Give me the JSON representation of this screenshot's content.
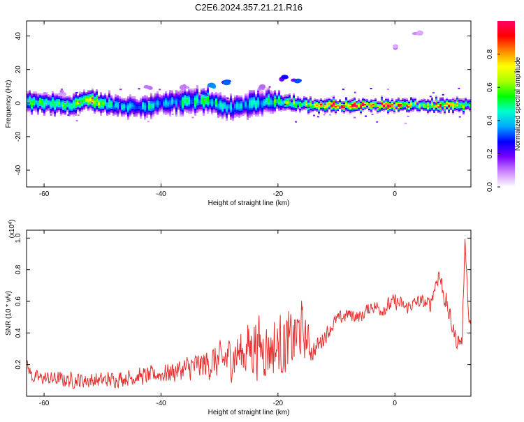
{
  "title": "C2E6.2024.357.21.21.R16",
  "chart_data": [
    {
      "type": "heatmap",
      "title": "C2E6.2024.357.21.21.R16",
      "xlabel": "Height of straight line (km)",
      "ylabel": "Frequency (Hz)",
      "xlim": [
        -63,
        13
      ],
      "ylim": [
        -50,
        49
      ],
      "x_ticks": [
        "-60",
        "-40",
        "-20",
        "0"
      ],
      "y_ticks": [
        "-40",
        "-20",
        "0",
        "20",
        "40"
      ],
      "colorbar": {
        "label": "Normalized spectral amplitude",
        "range": [
          0,
          1
        ],
        "ticks": [
          "0.0",
          "0.2",
          "0.4",
          "0.6",
          "0.8"
        ],
        "colors": [
          "#ffffff",
          "#cc88ff",
          "#7a00ff",
          "#0000ff",
          "#00aaff",
          "#00ffcc",
          "#00ff00",
          "#aaff00",
          "#ffff00",
          "#ff8800",
          "#ff0000",
          "#ff0066"
        ]
      },
      "ridge": [
        {
          "x": -63,
          "y": 1,
          "width": 5,
          "amp": 0.5
        },
        {
          "x": -56,
          "y": -1,
          "width": 5,
          "amp": 0.6
        },
        {
          "x": -52,
          "y": 2,
          "width": 5,
          "amp": 0.7
        },
        {
          "x": -48,
          "y": -1,
          "width": 5,
          "amp": 0.4
        },
        {
          "x": -44,
          "y": -2,
          "width": 5,
          "amp": 0.45
        },
        {
          "x": -40,
          "y": 0,
          "width": 6,
          "amp": 0.4
        },
        {
          "x": -36,
          "y": 1,
          "width": 6,
          "amp": 0.45
        },
        {
          "x": -32,
          "y": 2,
          "width": 6,
          "amp": 0.5
        },
        {
          "x": -28,
          "y": -3,
          "width": 6,
          "amp": 0.4
        },
        {
          "x": -24,
          "y": 0,
          "width": 6,
          "amp": 0.45
        },
        {
          "x": -20,
          "y": 2,
          "width": 5,
          "amp": 0.55
        },
        {
          "x": -17,
          "y": 0,
          "width": 4,
          "amp": 0.6
        },
        {
          "x": -14,
          "y": -1,
          "width": 3,
          "amp": 0.8
        },
        {
          "x": -8,
          "y": -1,
          "width": 3,
          "amp": 0.95
        },
        {
          "x": 0,
          "y": -1,
          "width": 3,
          "amp": 0.95
        },
        {
          "x": 4,
          "y": -1,
          "width": 3,
          "amp": 0.6
        },
        {
          "x": 8,
          "y": -1,
          "width": 3,
          "amp": 0.85
        },
        {
          "x": 13,
          "y": -1,
          "width": 3,
          "amp": 0.6
        }
      ],
      "scattered_blobs": [
        {
          "x": -31,
          "y": 11,
          "amp": 0.35
        },
        {
          "x": -29,
          "y": 12,
          "amp": 0.3
        },
        {
          "x": -19,
          "y": 15,
          "amp": 0.25
        },
        {
          "x": -17,
          "y": 14,
          "amp": 0.3
        },
        {
          "x": -36,
          "y": 10,
          "amp": 0.15
        },
        {
          "x": -42,
          "y": 9,
          "amp": 0.12
        },
        {
          "x": 0,
          "y": 34,
          "amp": 0.1
        },
        {
          "x": 4,
          "y": 41,
          "amp": 0.1
        },
        {
          "x": -23,
          "y": 9,
          "amp": 0.12
        },
        {
          "x": -57,
          "y": 6,
          "amp": 0.12
        }
      ]
    },
    {
      "type": "line",
      "xlabel": "Height of straight line (km)",
      "ylabel": "SNR (10 * v/v)",
      "y_multiplier": "(x10^4)",
      "xlim": [
        -63,
        13
      ],
      "ylim": [
        0,
        1.05
      ],
      "x_ticks": [
        "-60",
        "-40",
        "-20",
        "0"
      ],
      "y_ticks": [
        "0.2",
        "0.4",
        "0.6",
        "0.8",
        "1.0"
      ],
      "series": [
        {
          "color": "#e8302f",
          "envelope": [
            {
              "x": -63,
              "base": 0.2,
              "noise": 0.05
            },
            {
              "x": -62,
              "base": 0.12,
              "noise": 0.05
            },
            {
              "x": -55,
              "base": 0.1,
              "noise": 0.06
            },
            {
              "x": -50,
              "base": 0.1,
              "noise": 0.06
            },
            {
              "x": -45,
              "base": 0.12,
              "noise": 0.06
            },
            {
              "x": -40,
              "base": 0.14,
              "noise": 0.07
            },
            {
              "x": -35,
              "base": 0.18,
              "noise": 0.1
            },
            {
              "x": -30,
              "base": 0.22,
              "noise": 0.14
            },
            {
              "x": -26,
              "base": 0.28,
              "noise": 0.2
            },
            {
              "x": -24,
              "base": 0.33,
              "noise": 0.25
            },
            {
              "x": -22,
              "base": 0.3,
              "noise": 0.22
            },
            {
              "x": -18,
              "base": 0.33,
              "noise": 0.24
            },
            {
              "x": -16,
              "base": 0.42,
              "noise": 0.22
            },
            {
              "x": -14,
              "base": 0.28,
              "noise": 0.08
            },
            {
              "x": -12,
              "base": 0.38,
              "noise": 0.06
            },
            {
              "x": -10,
              "base": 0.48,
              "noise": 0.06
            },
            {
              "x": -8,
              "base": 0.52,
              "noise": 0.05
            },
            {
              "x": -6,
              "base": 0.5,
              "noise": 0.05
            },
            {
              "x": -4,
              "base": 0.57,
              "noise": 0.05
            },
            {
              "x": -2,
              "base": 0.55,
              "noise": 0.06
            },
            {
              "x": 0,
              "base": 0.6,
              "noise": 0.06
            },
            {
              "x": 2,
              "base": 0.56,
              "noise": 0.05
            },
            {
              "x": 4,
              "base": 0.6,
              "noise": 0.05
            },
            {
              "x": 6,
              "base": 0.58,
              "noise": 0.06
            },
            {
              "x": 7.5,
              "base": 0.78,
              "noise": 0.08
            },
            {
              "x": 9,
              "base": 0.55,
              "noise": 0.08
            },
            {
              "x": 10.5,
              "base": 0.35,
              "noise": 0.06
            },
            {
              "x": 11.5,
              "base": 0.35,
              "noise": 0.06
            },
            {
              "x": 12,
              "base": 1.02,
              "noise": 0.04
            },
            {
              "x": 12.6,
              "base": 0.5,
              "noise": 0.06
            },
            {
              "x": 13,
              "base": 0.45,
              "noise": 0.05
            }
          ]
        }
      ]
    }
  ]
}
